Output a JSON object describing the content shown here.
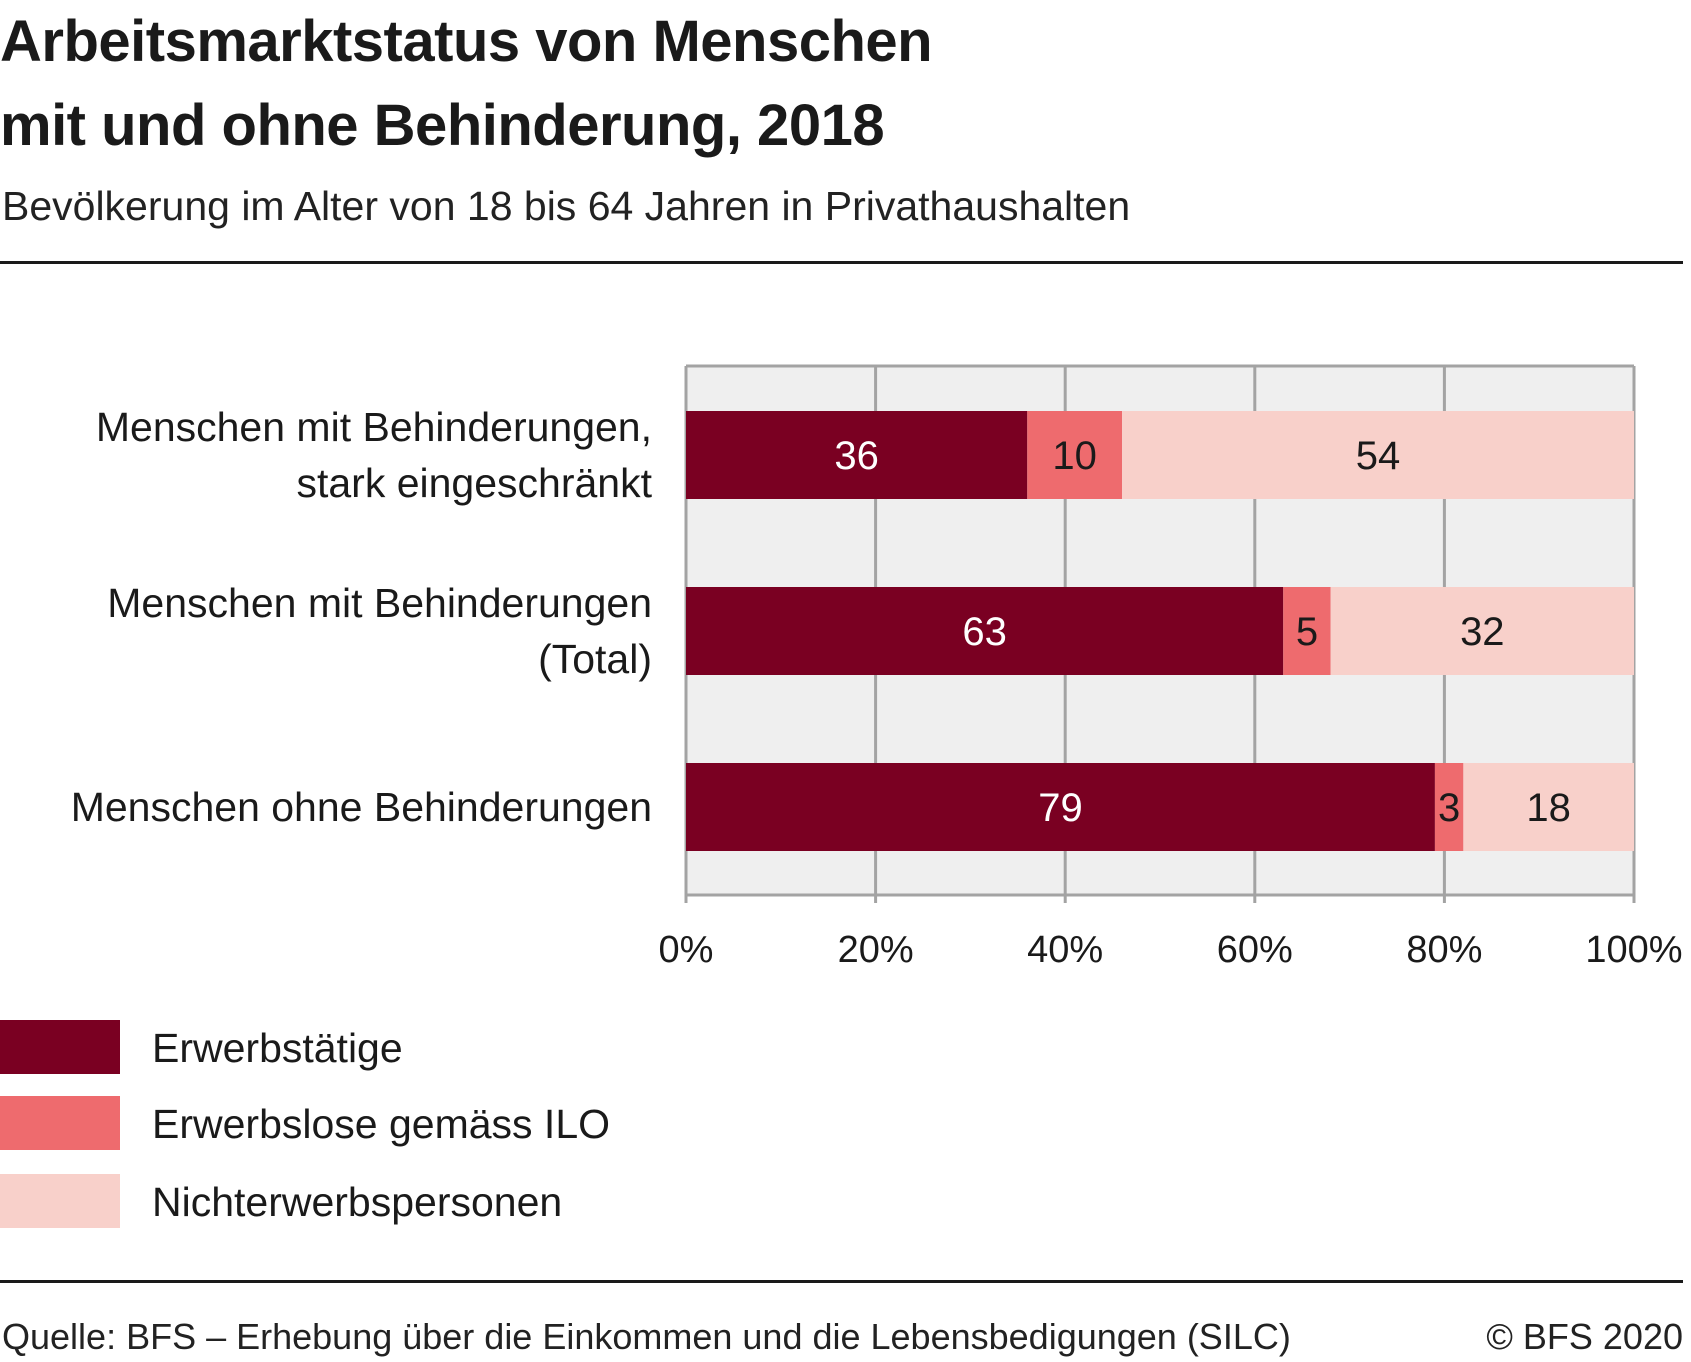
{
  "header": {
    "title_line1": "Arbeitsmarktstatus von Menschen",
    "title_line2": "mit und ohne Behinderung, 2018",
    "subtitle": "Bevölkerung im Alter von 18 bis 64 Jahren in Privathaushalten"
  },
  "footer": {
    "source": "Quelle: BFS – Erhebung über die Einkommen und die Lebensbedigungen (SILC)",
    "copyright": "© BFS 2020"
  },
  "colors": {
    "erwerbstaetige": "#7a0022",
    "erwerbslose": "#ee6b6e",
    "nichterwerbspersonen": "#f8d0ca",
    "plot_background": "#efefef",
    "grid": "#a3a3a3"
  },
  "chart_data": {
    "type": "bar",
    "orientation": "horizontal",
    "stacked": true,
    "title": "Arbeitsmarktstatus von Menschen mit und ohne Behinderung, 2018",
    "subtitle": "Bevölkerung im Alter von 18 bis 64 Jahren in Privathaushalten",
    "xlabel": "",
    "ylabel": "",
    "xlim": [
      0,
      100
    ],
    "x_ticks": [
      0,
      20,
      40,
      60,
      80,
      100
    ],
    "x_tick_labels": [
      "0%",
      "20%",
      "40%",
      "60%",
      "80%",
      "100%"
    ],
    "grid": true,
    "legend_position": "bottom-left",
    "categories": [
      [
        "Menschen mit Behinderungen,",
        "stark eingeschränkt"
      ],
      [
        "Menschen mit Behinderungen",
        "(Total)"
      ],
      [
        "Menschen ohne Behinderungen"
      ]
    ],
    "series": [
      {
        "name": "Erwerbstätige",
        "color": "#7a0022",
        "label_color": "#ffffff",
        "values": [
          36,
          63,
          79
        ]
      },
      {
        "name": "Erwerbslose gemäss ILO",
        "color": "#ee6b6e",
        "label_color": "#1a1a1a",
        "values": [
          10,
          5,
          3
        ]
      },
      {
        "name": "Nichterwerbspersonen",
        "color": "#f8d0ca",
        "label_color": "#1a1a1a",
        "values": [
          54,
          32,
          18
        ]
      }
    ]
  }
}
